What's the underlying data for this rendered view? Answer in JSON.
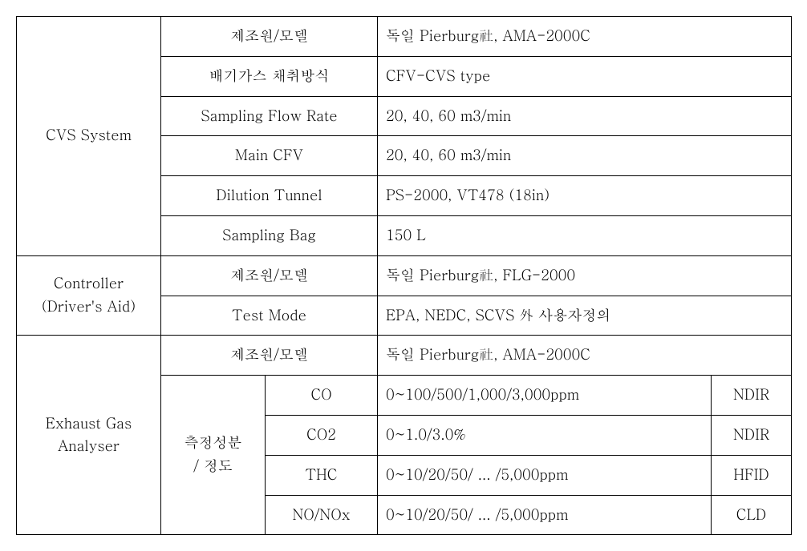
{
  "section1": {
    "header": "CVS System",
    "rows": [
      {
        "label": "제조원/모델",
        "value": "독일 Pierburg社, AMA-2000C"
      },
      {
        "label": "배기가스 채취방식",
        "value": "CFV-CVS type"
      },
      {
        "label": "Sampling Flow Rate",
        "value": "20, 40, 60 m3/min"
      },
      {
        "label": "Main CFV",
        "value": "20, 40, 60 m3/min"
      },
      {
        "label": "Dilution Tunnel",
        "value": "PS-2000, VT478 (18in)"
      },
      {
        "label": "Sampling Bag",
        "value": "150 L"
      }
    ]
  },
  "section2": {
    "header_line1": "Controller",
    "header_line2": "(Driver's Aid)",
    "rows": [
      {
        "label": "제조원/모델",
        "value": "독일 Pierburg社, FLG-2000"
      },
      {
        "label": "Test Mode",
        "value": "EPA, NEDC, SCVS 外 사용자정의"
      }
    ]
  },
  "section3": {
    "header_line1": "Exhaust Gas",
    "header_line2": "Analyser",
    "row0": {
      "label": "제조원/모델",
      "value": "독일 Pierburg社, AMA-2000C"
    },
    "sub_label_line1": "측정성분",
    "sub_label_line2": "/ 정도",
    "rows": [
      {
        "param": "CO",
        "range": "0~100/500/1,000/3,000ppm",
        "method": "NDIR"
      },
      {
        "param": "CO2",
        "range": "0~1.0/3.0%",
        "method": "NDIR"
      },
      {
        "param": "THC",
        "range": "0~10/20/50/ ... /5,000ppm",
        "method": "HFID"
      },
      {
        "param": "NO/NOx",
        "range": "0~10/20/50/ ... /5,000ppm",
        "method": "CLD"
      }
    ]
  }
}
